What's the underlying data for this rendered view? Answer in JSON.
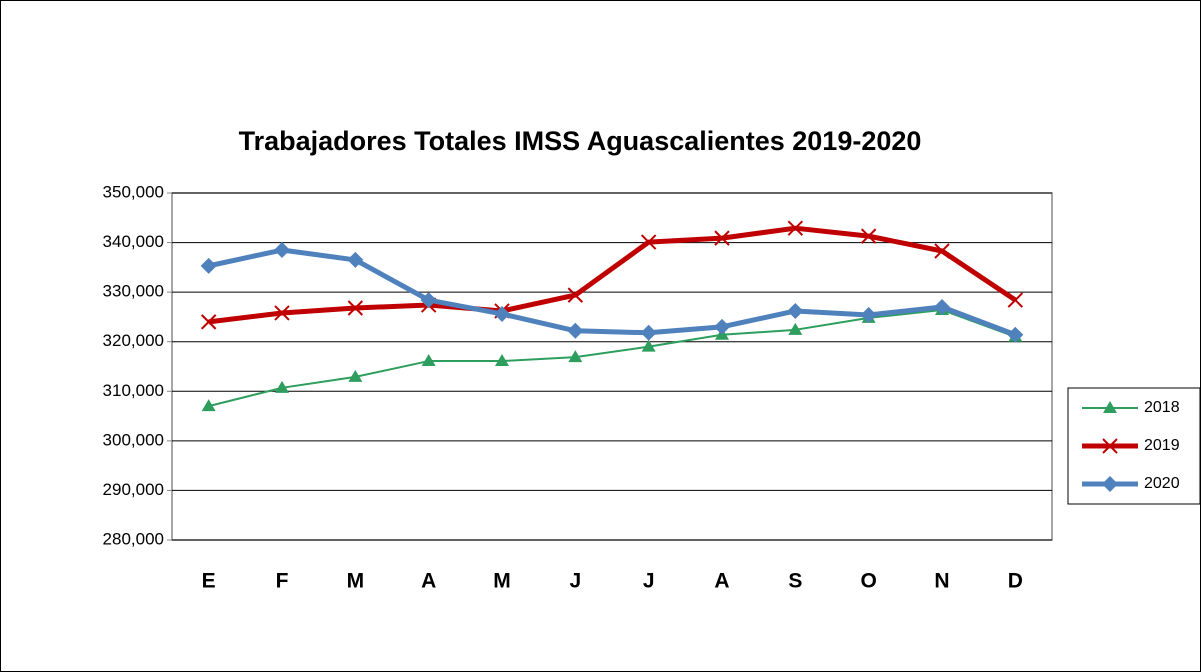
{
  "chart_data": {
    "type": "line",
    "title": "Trabajadores Totales IMSS Aguascalientes 2019-2020",
    "categories": [
      "E",
      "F",
      "M",
      "A",
      "M",
      "J",
      "J",
      "A",
      "S",
      "O",
      "N",
      "D"
    ],
    "series": [
      {
        "name": "2018",
        "color": "#2e9e5e",
        "marker": "triangle",
        "values": [
          307000,
          310700,
          312900,
          316100,
          316100,
          316900,
          319000,
          321400,
          322400,
          324800,
          326400,
          321000
        ]
      },
      {
        "name": "2019",
        "color": "#c00000",
        "marker": "x",
        "values": [
          324000,
          325800,
          326800,
          327400,
          326200,
          329400,
          340100,
          340900,
          342900,
          341300,
          338300,
          328400
        ]
      },
      {
        "name": "2020",
        "color": "#4f81bd",
        "marker": "diamond",
        "values": [
          335300,
          338500,
          336500,
          328400,
          325600,
          322200,
          321800,
          323000,
          326200,
          325400,
          327000,
          321400
        ]
      }
    ],
    "ylim": [
      280000,
      350000
    ],
    "yticks": [
      {
        "value": 280000,
        "label": "280,000"
      },
      {
        "value": 290000,
        "label": "290,000"
      },
      {
        "value": 300000,
        "label": "300,000"
      },
      {
        "value": 310000,
        "label": "310,000"
      },
      {
        "value": 320000,
        "label": "320,000"
      },
      {
        "value": 330000,
        "label": "330,000"
      },
      {
        "value": 340000,
        "label": "340,000"
      },
      {
        "value": 350000,
        "label": "350,000"
      }
    ],
    "grid": true,
    "legend": "right"
  }
}
